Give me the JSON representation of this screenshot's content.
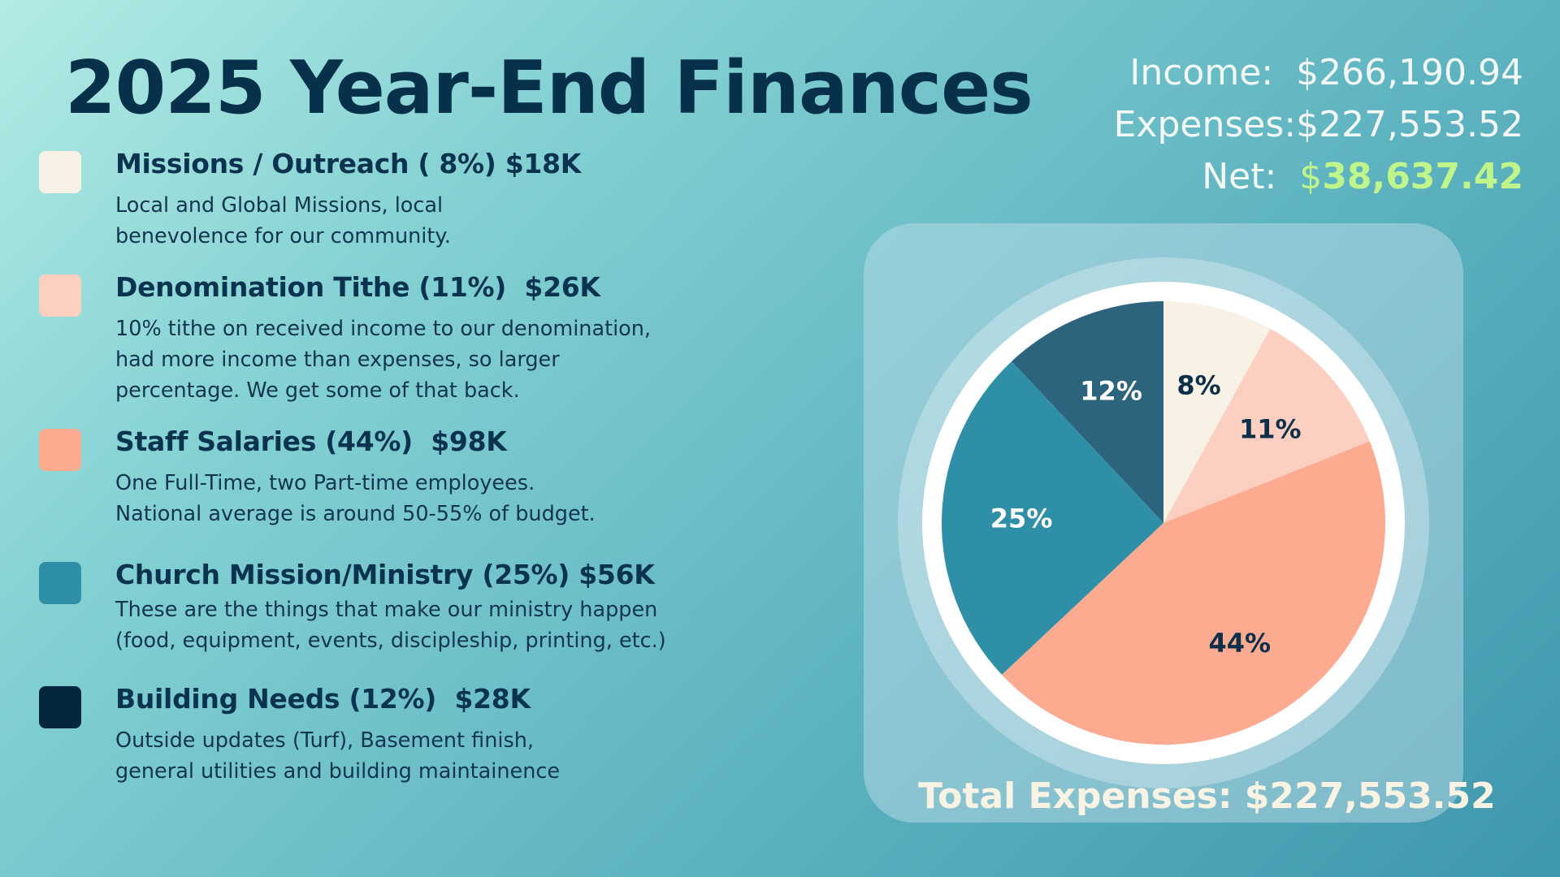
{
  "title": "2025 Year-End Finances",
  "summary": {
    "income_label": "Income:",
    "income_value": "$266,190.94",
    "expenses_label": "Expenses:",
    "expenses_value": "$227,553.52",
    "net_label": "Net:",
    "net_dollar": "$",
    "net_value": "38,637.42",
    "net_color": "#bff58b"
  },
  "legend": [
    {
      "heading": "Missions / Outreach ( 8%) $18K",
      "desc": [
        "Local and Global Missions, local",
        "benevolence for our community."
      ],
      "color": "#f8f1e5"
    },
    {
      "heading": "Denomination Tithe (11%)  $26K",
      "desc": [
        "10% tithe on received income to our denomination,",
        "had more income than expenses, so larger",
        "percentage. We get some of that back."
      ],
      "color": "#fdcfc0"
    },
    {
      "heading": "Staff Salaries (44%)  $98K",
      "desc": [
        "One Full-Time, two Part-time employees.",
        "National average is around 50-55% of budget."
      ],
      "color": "#fcab91"
    },
    {
      "heading": "Church Mission/Ministry (25%) $56K",
      "desc": [
        "These are the things that make our ministry happen",
        "(food, equipment, events, discipleship, printing, etc.)"
      ],
      "color": "#2e8fa7"
    },
    {
      "heading": "Building Needs (12%)  $28K",
      "desc": [
        "Outside updates (Turf), Basement finish,",
        "general utilities and building maintainence"
      ],
      "color": "#04263f"
    }
  ],
  "chart_data": {
    "type": "pie",
    "categories": [
      "Missions / Outreach",
      "Denomination Tithe",
      "Staff Salaries",
      "Church Mission/Ministry",
      "Building Needs"
    ],
    "values": [
      8,
      11,
      44,
      25,
      12
    ],
    "labels": [
      "8%",
      "11%",
      "44%",
      "25%",
      "12%"
    ],
    "colors": [
      "#f8f1e5",
      "#fdcfc0",
      "#fcab91",
      "#2e8fa7",
      "#2c647e"
    ],
    "label_colors": [
      "#0c2f4a",
      "#0c2f4a",
      "#0c2f4a",
      "#ffffff",
      "#ffffff"
    ],
    "direction": "clockwise from 12 o'clock"
  },
  "total_label": "Total Expenses: $227,553.52"
}
